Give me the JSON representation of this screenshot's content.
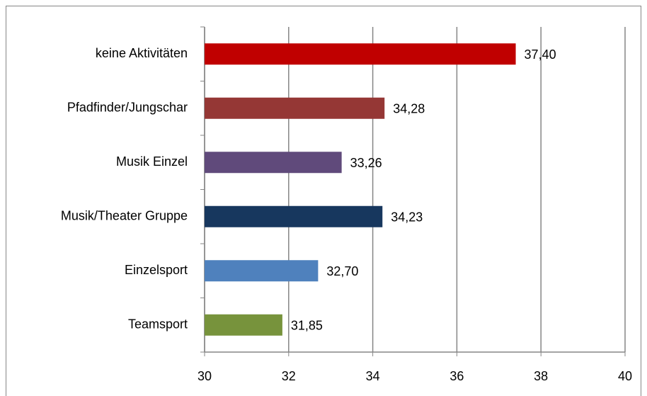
{
  "chart_data": {
    "type": "bar",
    "orientation": "horizontal",
    "categories": [
      "keine Aktivitäten",
      "Pfadfinder/Jungschar",
      "Musik Einzel",
      "Musik/Theater Gruppe",
      "Einzelsport",
      "Teamsport"
    ],
    "values": [
      37.4,
      34.28,
      33.26,
      34.23,
      32.7,
      31.85
    ],
    "value_labels": [
      "37,40",
      "34,28",
      "33,26",
      "34,23",
      "32,70",
      "31,85"
    ],
    "colors": [
      "#c00000",
      "#953735",
      "#604a7b",
      "#17375e",
      "#4f81bd",
      "#77933c"
    ],
    "xlim": [
      30,
      40
    ],
    "xticks": [
      30,
      32,
      34,
      36,
      38,
      40
    ],
    "grid": true
  }
}
